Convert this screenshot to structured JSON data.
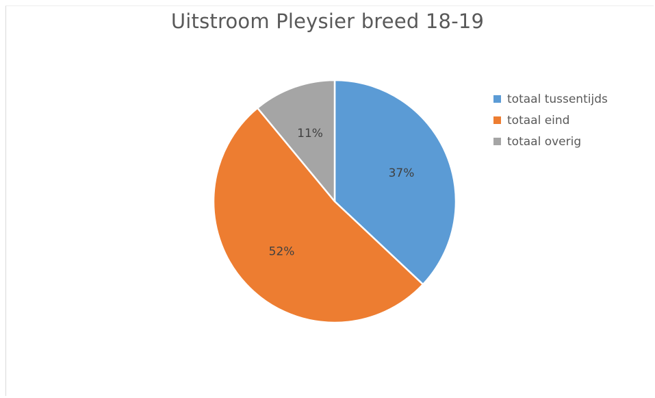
{
  "chart_data": {
    "type": "pie",
    "title": "Uitstroom Pleysier breed 18-19",
    "categories": [
      "totaal tussentijds",
      "totaal eind",
      "totaal overig"
    ],
    "values": [
      37,
      52,
      11
    ],
    "labels": [
      "37%",
      "52%",
      "11%"
    ],
    "colors": [
      "#5b9bd5",
      "#ed7d31",
      "#a5a5a5"
    ],
    "start_angle_deg": 0,
    "direction": "clockwise",
    "legend": "right"
  }
}
